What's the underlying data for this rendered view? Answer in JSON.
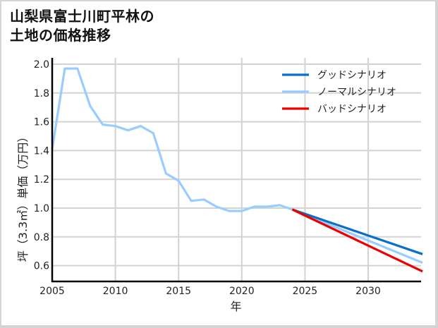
{
  "title": {
    "line1": "山梨県富士川町平林の",
    "line2": "土地の価格推移"
  },
  "chart_data": {
    "type": "line",
    "title": "山梨県富士川町平林の土地の価格推移",
    "xlabel": "年",
    "ylabel": "坪（3.3㎡）単価（万円）",
    "xlim": [
      2005,
      2034.3
    ],
    "ylim": [
      0.48,
      2.03
    ],
    "x_ticks": [
      2005,
      2010,
      2015,
      2020,
      2025,
      2030
    ],
    "y_ticks": [
      0.6,
      0.8,
      1.0,
      1.2,
      1.4,
      1.6,
      1.8,
      2.0
    ],
    "y_tick_labels": [
      "0.6",
      "0.8",
      "1.0",
      "1.2",
      "1.4",
      "1.6",
      "1.8",
      "2.0"
    ],
    "grid": true,
    "legend_position": "upper right",
    "series": [
      {
        "name": "グッドシナリオ",
        "color": "#0a6fc9",
        "x": [
          2024,
          2034.3
        ],
        "values": [
          0.99,
          0.68
        ]
      },
      {
        "name": "ノーマルシナリオ",
        "color": "#99ccff",
        "x": [
          2005,
          2006,
          2007,
          2008,
          2009,
          2010,
          2011,
          2012,
          2013,
          2014,
          2015,
          2016,
          2017,
          2018,
          2019,
          2020,
          2021,
          2022,
          2023,
          2024,
          2034.3
        ],
        "values": [
          1.41,
          1.97,
          1.97,
          1.71,
          1.58,
          1.57,
          1.54,
          1.57,
          1.52,
          1.24,
          1.19,
          1.05,
          1.06,
          1.01,
          0.98,
          0.98,
          1.01,
          1.01,
          1.02,
          0.99,
          0.62
        ]
      },
      {
        "name": "バッドシナリオ",
        "color": "#ee0000",
        "x": [
          2024,
          2034.3
        ],
        "values": [
          0.99,
          0.56
        ]
      }
    ]
  }
}
